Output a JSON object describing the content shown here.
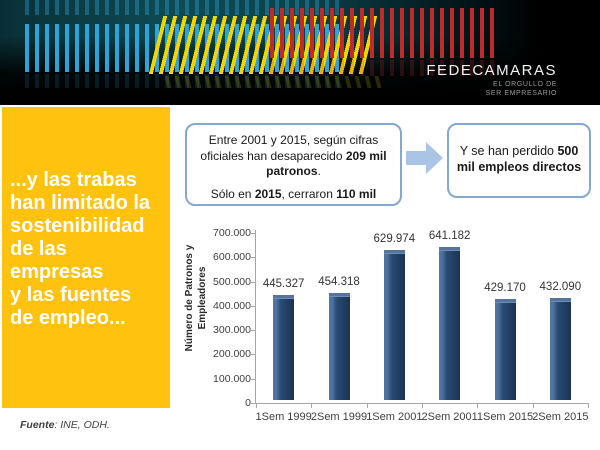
{
  "banner": {
    "brand": "FEDECAMARAS",
    "tagline_line1": "EL ORGULLO DE",
    "tagline_line2": "SER EMPRESARIO"
  },
  "sidebar": {
    "bg_color": "#FFC20E",
    "title_lines": [
      "...y las trabas",
      "han limitado la",
      "sostenibilidad",
      "de las",
      "empresas",
      "y las fuentes",
      "de empleo..."
    ]
  },
  "callouts": {
    "left_box": {
      "p1_normal": "Entre 2001 y 2015, según cifras oficiales han desaparecido ",
      "p1_bold": "209 mil patronos",
      "p1_end": ".",
      "p2_pre": "Sólo en ",
      "p2_bold1": "2015",
      "p2_mid": ", cerraron ",
      "p2_bold2": "110 mil"
    },
    "right_box": {
      "pre": "Y se han perdido ",
      "bold": "500 mil empleos directos"
    }
  },
  "source": {
    "label_bold": "Fuente",
    "label_rest": ": INE, ODH."
  },
  "chart_data": {
    "type": "bar",
    "categories": [
      "1Sem 1999",
      "2Sem 1999",
      "1Sem 2001",
      "2Sem 2001",
      "1Sem 2015",
      "2Sem 2015"
    ],
    "values": [
      445327,
      454318,
      629974,
      641182,
      429170,
      432090
    ],
    "value_labels": [
      "445.327",
      "454.318",
      "629.974",
      "641.182",
      "429.170",
      "432.090"
    ],
    "title": "",
    "xlabel": "",
    "ylabel": "Número de Patronos y Empleadores",
    "ylabel_lines": [
      "Número de Patronos y",
      "Empleadores"
    ],
    "y_ticks": [
      "0",
      "100.000",
      "200.000",
      "300.000",
      "400.000",
      "500.000",
      "600.000",
      "700.000"
    ],
    "ylim": [
      0,
      700000
    ],
    "bar_color": "#24466E",
    "grid": false,
    "legend": null
  }
}
